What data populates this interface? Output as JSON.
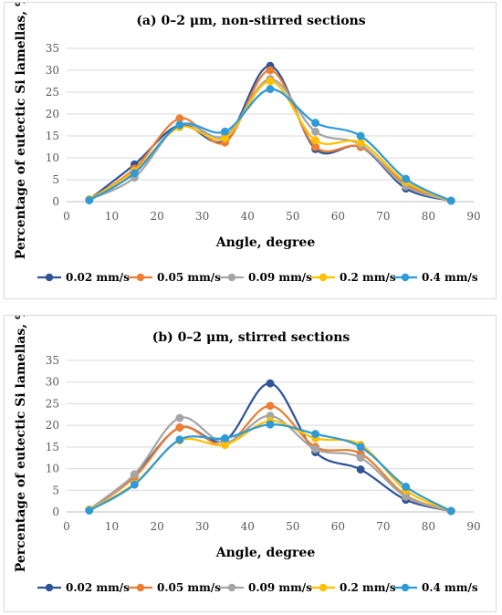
{
  "chart_data": [
    {
      "type": "line",
      "title": "(a) 0–2 μm, non-stirred sections",
      "xlabel": "Angle, degree",
      "ylabel": "Percentage of eutectic Si lamellas, %",
      "xlim": [
        0,
        90
      ],
      "ylim": [
        0,
        35
      ],
      "xticks": [
        "0",
        "10",
        "20",
        "30",
        "40",
        "50",
        "60",
        "70",
        "80",
        "90"
      ],
      "yticks": [
        "0",
        "5",
        "10",
        "15",
        "20",
        "25",
        "30",
        "35"
      ],
      "grid": "horizontal",
      "legend": "bottom",
      "x": [
        5,
        15,
        25,
        35,
        45,
        55,
        65,
        75,
        85
      ],
      "series": [
        {
          "name": "0.02 mm/s",
          "color": "#2F5597",
          "values": [
            0.5,
            8.5,
            17.5,
            14.0,
            31.0,
            12.0,
            12.5,
            3.0,
            0.2
          ]
        },
        {
          "name": "0.05 mm/s",
          "color": "#ED7D31",
          "values": [
            0.5,
            7.5,
            19.0,
            13.5,
            30.0,
            12.5,
            12.5,
            4.0,
            0.2
          ]
        },
        {
          "name": "0.09 mm/s",
          "color": "#A5A5A5",
          "values": [
            0.5,
            5.5,
            17.5,
            15.0,
            28.0,
            16.0,
            13.0,
            3.5,
            0.2
          ]
        },
        {
          "name": "0.2 mm/s",
          "color": "#FFC000",
          "values": [
            0.5,
            7.0,
            17.0,
            14.5,
            27.5,
            14.0,
            13.5,
            4.5,
            0.2
          ]
        },
        {
          "name": "0.4 mm/s",
          "color": "#2E9AD8",
          "values": [
            0.3,
            6.5,
            17.5,
            16.0,
            25.7,
            18.0,
            15.0,
            5.2,
            0.2
          ]
        }
      ]
    },
    {
      "type": "line",
      "title": "(b) 0–2 μm, stirred sections",
      "xlabel": "Angle, degree",
      "ylabel": "Percentage of eutectic Si lamellas, %",
      "xlim": [
        0,
        90
      ],
      "ylim": [
        0,
        35
      ],
      "xticks": [
        "0",
        "10",
        "20",
        "30",
        "40",
        "50",
        "60",
        "70",
        "80",
        "90"
      ],
      "yticks": [
        "0",
        "5",
        "10",
        "15",
        "20",
        "25",
        "30",
        "35"
      ],
      "grid": "horizontal",
      "legend": "bottom",
      "x": [
        5,
        15,
        25,
        35,
        45,
        55,
        65,
        75,
        85
      ],
      "series": [
        {
          "name": "0.02 mm/s",
          "color": "#2F5597",
          "values": [
            0.5,
            8.5,
            19.5,
            16.5,
            29.7,
            13.8,
            9.8,
            2.8,
            0.2
          ]
        },
        {
          "name": "0.05 mm/s",
          "color": "#ED7D31",
          "values": [
            0.5,
            8.0,
            19.5,
            15.5,
            24.5,
            15.0,
            13.5,
            3.8,
            0.2
          ]
        },
        {
          "name": "0.09 mm/s",
          "color": "#A5A5A5",
          "values": [
            0.5,
            8.7,
            21.7,
            16.0,
            22.2,
            14.5,
            12.5,
            3.5,
            0.2
          ]
        },
        {
          "name": "0.2 mm/s",
          "color": "#FFC000",
          "values": [
            0.5,
            6.5,
            16.5,
            15.5,
            21.0,
            17.0,
            15.5,
            5.0,
            0.2
          ]
        },
        {
          "name": "0.4 mm/s",
          "color": "#2E9AD8",
          "values": [
            0.3,
            6.3,
            16.7,
            17.0,
            20.2,
            18.0,
            15.0,
            5.8,
            0.2
          ]
        }
      ]
    }
  ]
}
